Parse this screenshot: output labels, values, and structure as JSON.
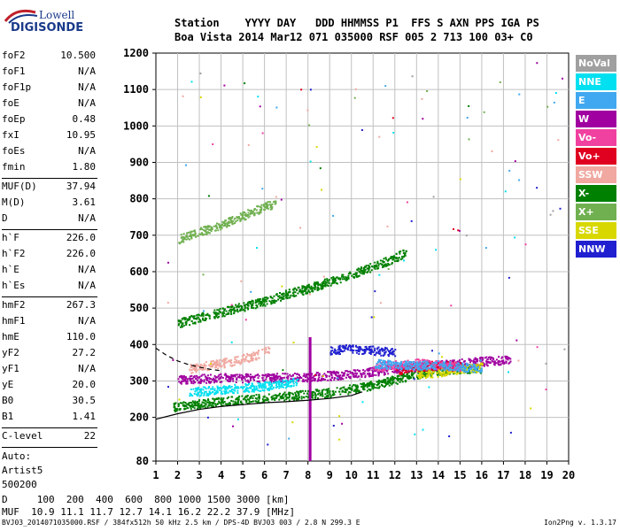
{
  "logo": {
    "line1": "Lowell",
    "line2": "DIGISONDE"
  },
  "header": {
    "labels": "Station    YYYY DAY   DDD HHMMSS P1  FFS S AXN PPS IGA PS",
    "values": "Boa Vista 2014 Mar12 071 035000 RSF 005 2 713 100 03+ C0"
  },
  "params": {
    "group1": [
      {
        "k": "foF2",
        "v": "10.500"
      },
      {
        "k": "foF1",
        "v": "N/A"
      },
      {
        "k": "foF1p",
        "v": "N/A"
      },
      {
        "k": "foE",
        "v": "N/A"
      },
      {
        "k": "foEp",
        "v": "0.48"
      },
      {
        "k": "fxI",
        "v": "10.95"
      },
      {
        "k": "foEs",
        "v": "N/A"
      },
      {
        "k": "fmin",
        "v": "1.80"
      }
    ],
    "group2": [
      {
        "k": "MUF(D)",
        "v": "37.94"
      },
      {
        "k": "M(D)",
        "v": "3.61"
      },
      {
        "k": "D",
        "v": "N/A"
      }
    ],
    "group3": [
      {
        "k": "h`F",
        "v": "226.0"
      },
      {
        "k": "h`F2",
        "v": "226.0"
      },
      {
        "k": "h`E",
        "v": "N/A"
      },
      {
        "k": "h`Es",
        "v": "N/A"
      }
    ],
    "group4": [
      {
        "k": "hmF2",
        "v": "267.3"
      },
      {
        "k": "hmF1",
        "v": "N/A"
      },
      {
        "k": "hmE",
        "v": "110.0"
      },
      {
        "k": "yF2",
        "v": "27.2"
      },
      {
        "k": "yF1",
        "v": "N/A"
      },
      {
        "k": "yE",
        "v": "20.0"
      },
      {
        "k": "B0",
        "v": "30.5"
      },
      {
        "k": "B1",
        "v": "1.41"
      }
    ],
    "group5": [
      {
        "k": "C-level",
        "v": "22"
      }
    ],
    "extra": [
      "Auto:",
      "Artist5",
      "500200"
    ]
  },
  "legend": [
    {
      "label": "NoVal",
      "color": "#a0a0a0"
    },
    {
      "label": "NNE",
      "color": "#00e0f0"
    },
    {
      "label": "E",
      "color": "#40a8f0"
    },
    {
      "label": "W",
      "color": "#a000a0"
    },
    {
      "label": "Vo-",
      "color": "#f040a0"
    },
    {
      "label": "Vo+",
      "color": "#e00020"
    },
    {
      "label": "SSW",
      "color": "#f0a8a0"
    },
    {
      "label": "X-",
      "color": "#008000"
    },
    {
      "label": "X+",
      "color": "#70b050"
    },
    {
      "label": "SSE",
      "color": "#d8d800"
    },
    {
      "label": "NNW",
      "color": "#2020d0"
    }
  ],
  "bottom": {
    "d_row": "D     100  200  400  600  800 1000 1500 3000 [km]",
    "muf_row": "MUF  10.9 11.1 11.7 12.7 14.1 16.2 22.2 37.9 [MHz]"
  },
  "footer": "BVJ03_2014071035000.RSF / 384fx512h 50 kHz 2.5 km / DPS-4D BVJ03 003 / 2.8 N 299.3 E",
  "version": "Ion2Png v. 1.3.17",
  "chart_data": {
    "type": "scatter",
    "xlim": [
      1,
      20
    ],
    "ylim": [
      80,
      1200
    ],
    "x_ticks": [
      1,
      2,
      3,
      4,
      5,
      6,
      7,
      8,
      9,
      10,
      11,
      12,
      13,
      14,
      15,
      16,
      17,
      18,
      19,
      20
    ],
    "y_ticks": [
      80,
      200,
      300,
      400,
      500,
      600,
      700,
      800,
      900,
      1000,
      1100,
      1200
    ],
    "grid": true,
    "legend_position": "right",
    "echo_traces": [
      {
        "name": "F2 O-trace",
        "x": [
          1.8,
          3,
          4,
          5,
          6,
          7,
          8,
          9,
          10,
          11,
          12,
          13,
          14,
          15,
          16
        ],
        "y": [
          230,
          240,
          245,
          250,
          255,
          260,
          265,
          270,
          280,
          290,
          305,
          320,
          330,
          335,
          335
        ],
        "color": "#008000"
      },
      {
        "name": "F2 O-trace W",
        "x": [
          2,
          4,
          6,
          8,
          10,
          12,
          14,
          16,
          17.3
        ],
        "y": [
          305,
          310,
          310,
          312,
          320,
          335,
          345,
          355,
          360
        ],
        "color": "#a000a0"
      },
      {
        "name": "F2 second hop",
        "x": [
          2,
          3,
          4,
          5,
          6,
          7,
          8,
          9,
          10,
          11,
          12,
          12.5
        ],
        "y": [
          460,
          475,
          490,
          505,
          520,
          540,
          555,
          575,
          595,
          615,
          640,
          655
        ],
        "color": "#008000"
      },
      {
        "name": "F2 third hop",
        "x": [
          2,
          3,
          4,
          5,
          6,
          6.5
        ],
        "y": [
          690,
          710,
          730,
          755,
          780,
          790
        ],
        "color": "#70b050"
      },
      {
        "name": "NNE echoes",
        "x": [
          2.5,
          3.5,
          4.5,
          5.5,
          6.5,
          7.5
        ],
        "y": [
          270,
          275,
          280,
          285,
          290,
          300
        ],
        "color": "#00e0f0"
      },
      {
        "name": "SSW echoes",
        "x": [
          2.5,
          3.5,
          4.5,
          5.5,
          6.2
        ],
        "y": [
          335,
          345,
          355,
          370,
          390
        ],
        "color": "#f0a8a0"
      },
      {
        "name": "NNW echoes",
        "x": [
          9,
          10,
          11,
          12
        ],
        "y": [
          385,
          390,
          385,
          380
        ],
        "color": "#2020d0"
      },
      {
        "name": "SSE echoes",
        "x": [
          13,
          14,
          15,
          16
        ],
        "y": [
          320,
          325,
          335,
          340
        ],
        "color": "#d8d800"
      },
      {
        "name": "Vo+ echoes",
        "x": [
          12,
          13,
          14,
          15
        ],
        "y": [
          330,
          340,
          345,
          340
        ],
        "color": "#e00020"
      },
      {
        "name": "Vo- echoes",
        "x": [
          11,
          12,
          13,
          14,
          15
        ],
        "y": [
          340,
          345,
          350,
          345,
          340
        ],
        "color": "#f040a0"
      },
      {
        "name": "E echoes",
        "x": [
          11,
          12,
          13,
          14,
          15,
          16
        ],
        "y": [
          350,
          345,
          345,
          345,
          340,
          335
        ],
        "color": "#40a8f0"
      }
    ],
    "vertical_spike": {
      "x": 8.1,
      "y_min": 80,
      "y_max": 420,
      "color": "#a000a0"
    },
    "profile_curve_solid": {
      "x": [
        1,
        2,
        3,
        4,
        5,
        6,
        7,
        8,
        9,
        10,
        10.5
      ],
      "y": [
        195,
        210,
        222,
        230,
        235,
        240,
        243,
        247,
        252,
        260,
        270
      ]
    },
    "profile_curve_dashed": {
      "x": [
        1,
        1.5,
        2,
        2.5,
        3,
        3.5,
        4
      ],
      "y": [
        390,
        370,
        355,
        345,
        338,
        332,
        328
      ]
    }
  }
}
